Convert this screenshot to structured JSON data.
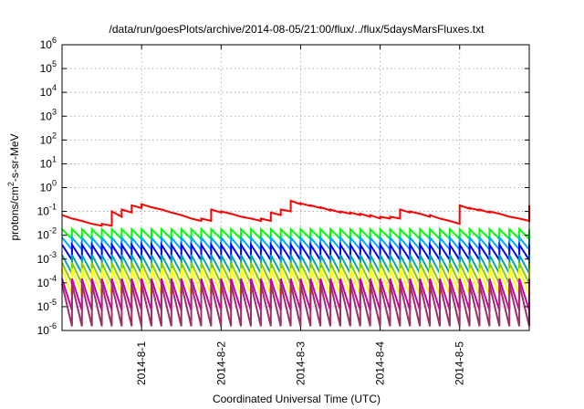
{
  "chart_data": {
    "type": "line",
    "title": "/data/run/goesPlots/archive/2014-08-05/21:00/flux/../flux/5daysMarsFluxes.txt",
    "xlabel": "Coordinated Universal Time (UTC)",
    "ylabel_base": "protons/cm",
    "ylabel_sup": "2",
    "ylabel_rest": "-s-sr-MeV",
    "x_range_days": [
      "2014-07-31T00:00",
      "2014-08-05T21:00"
    ],
    "x_ticks": [
      {
        "date": "2014-08-01",
        "label": "2014-8-1"
      },
      {
        "date": "2014-08-02",
        "label": "2014-8-2"
      },
      {
        "date": "2014-08-03",
        "label": "2014-8-3"
      },
      {
        "date": "2014-08-04",
        "label": "2014-8-4"
      },
      {
        "date": "2014-08-05",
        "label": "2014-8-5"
      }
    ],
    "y_scale": "log",
    "ylim": [
      1e-06,
      1000000.0
    ],
    "y_ticks": [
      {
        "base": "10",
        "exp": "-6"
      },
      {
        "base": "10",
        "exp": "-5"
      },
      {
        "base": "10",
        "exp": "-4"
      },
      {
        "base": "10",
        "exp": "-3"
      },
      {
        "base": "10",
        "exp": "-2"
      },
      {
        "base": "10",
        "exp": "-1"
      },
      {
        "base": "10",
        "exp": "0"
      },
      {
        "base": "10",
        "exp": "1"
      },
      {
        "base": "10",
        "exp": "2"
      },
      {
        "base": "10",
        "exp": "3"
      },
      {
        "base": "10",
        "exp": "4"
      },
      {
        "base": "10",
        "exp": "5"
      },
      {
        "base": "10",
        "exp": "6"
      }
    ],
    "grid": true,
    "series": [
      {
        "color": "#ff0000",
        "sawtooth_period_hours": 3,
        "peaks": [
          0.07,
          0.05,
          0.04,
          0.03,
          0.03,
          0.1,
          0.12,
          0.18,
          0.2,
          0.15,
          0.12,
          0.09,
          0.07,
          0.05,
          0.05,
          0.12,
          0.1,
          0.08,
          0.06,
          0.05,
          0.05,
          0.09,
          0.12,
          0.28,
          0.22,
          0.18,
          0.15,
          0.12,
          0.1,
          0.09,
          0.08,
          0.07,
          0.06,
          0.06,
          0.12,
          0.1,
          0.08,
          0.07,
          0.05,
          0.04,
          0.18,
          0.14,
          0.12,
          0.1,
          0.08,
          0.06,
          0.05,
          0.18,
          0.15,
          0.1,
          0.06
        ],
        "troughs": [
          0.05,
          0.04,
          0.03,
          0.025,
          0.025,
          0.06,
          0.09,
          0.14,
          0.15,
          0.12,
          0.09,
          0.07,
          0.05,
          0.04,
          0.04,
          0.09,
          0.08,
          0.06,
          0.05,
          0.04,
          0.04,
          0.07,
          0.1,
          0.2,
          0.17,
          0.14,
          0.11,
          0.09,
          0.08,
          0.07,
          0.06,
          0.05,
          0.05,
          0.05,
          0.09,
          0.08,
          0.06,
          0.05,
          0.04,
          0.03,
          0.13,
          0.11,
          0.09,
          0.08,
          0.06,
          0.05,
          0.04,
          0.13,
          0.11,
          0.08,
          0.05
        ]
      },
      {
        "color": "#00ff00",
        "sawtooth_period_hours": 3,
        "peak": 0.018,
        "trough": 0.007
      },
      {
        "color": "#00aaff",
        "sawtooth_period_hours": 3,
        "peak": 0.008,
        "trough": 0.0025
      },
      {
        "color": "#0000ff",
        "sawtooth_period_hours": 3,
        "peak": 0.004,
        "trough": 0.0009
      },
      {
        "color": "#00aaaa",
        "sawtooth_period_hours": 3,
        "peak": 0.0015,
        "trough": 0.00025
      },
      {
        "color": "#88cc00",
        "sawtooth_period_hours": 3,
        "peak": 0.0007,
        "trough": 9e-05
      },
      {
        "color": "#ffff00",
        "sawtooth_period_hours": 3,
        "peak": 0.0004,
        "trough": 3e-05
      },
      {
        "color": "#cc00aa",
        "sawtooth_period_hours": 3,
        "peak": 0.00015,
        "trough": 7e-06
      },
      {
        "color": "#993366",
        "sawtooth_period_hours": 3,
        "peak": 9e-05,
        "trough": 1.5e-06
      }
    ]
  }
}
